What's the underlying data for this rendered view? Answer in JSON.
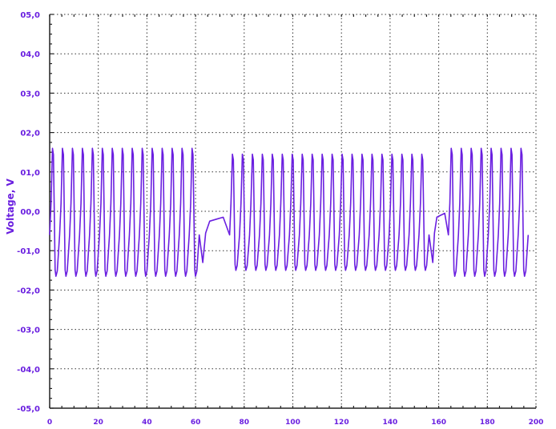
{
  "chart_data": {
    "type": "line",
    "title": "",
    "xlabel": "",
    "ylabel": "Voltage, V",
    "xlim": [
      0,
      200
    ],
    "ylim": [
      -5,
      5
    ],
    "x_ticks": [
      0,
      20,
      40,
      60,
      80,
      100,
      120,
      140,
      160,
      180,
      200
    ],
    "x_tick_labels": [
      "0",
      "20",
      "40",
      "60",
      "80",
      "100",
      "120",
      "140",
      "160",
      "180",
      "200"
    ],
    "y_ticks": [
      5,
      4,
      3,
      2,
      1,
      0,
      -1,
      -2,
      -3,
      -4,
      -5
    ],
    "y_tick_labels": [
      "05,0",
      "04,0",
      "03,0",
      "02,0",
      "01,0",
      "00,0",
      "-01,0",
      "-02,0",
      "-03,0",
      "-04,0",
      "-05,0"
    ],
    "grid": true,
    "colors": {
      "series": "#6a1fe0",
      "axis": "#222222",
      "grid": "#333333",
      "labels": "#6a1fe0"
    },
    "series": [
      {
        "segments": [
          {
            "kind": "spikes",
            "t_start": 0,
            "t_end": 62,
            "period": 4.1,
            "peak": 1.6,
            "trough": -1.65
          },
          {
            "kind": "settle",
            "t_start": 62,
            "t_end": 74,
            "level": -0.2
          },
          {
            "kind": "spikes",
            "t_start": 74,
            "t_end": 157,
            "period": 4.1,
            "peak": 1.45,
            "trough": -1.5
          },
          {
            "kind": "settle",
            "t_start": 157,
            "t_end": 164,
            "level": -0.1
          },
          {
            "kind": "spikes",
            "t_start": 164,
            "t_end": 200,
            "period": 4.1,
            "peak": 1.6,
            "trough": -1.65
          }
        ]
      }
    ]
  }
}
